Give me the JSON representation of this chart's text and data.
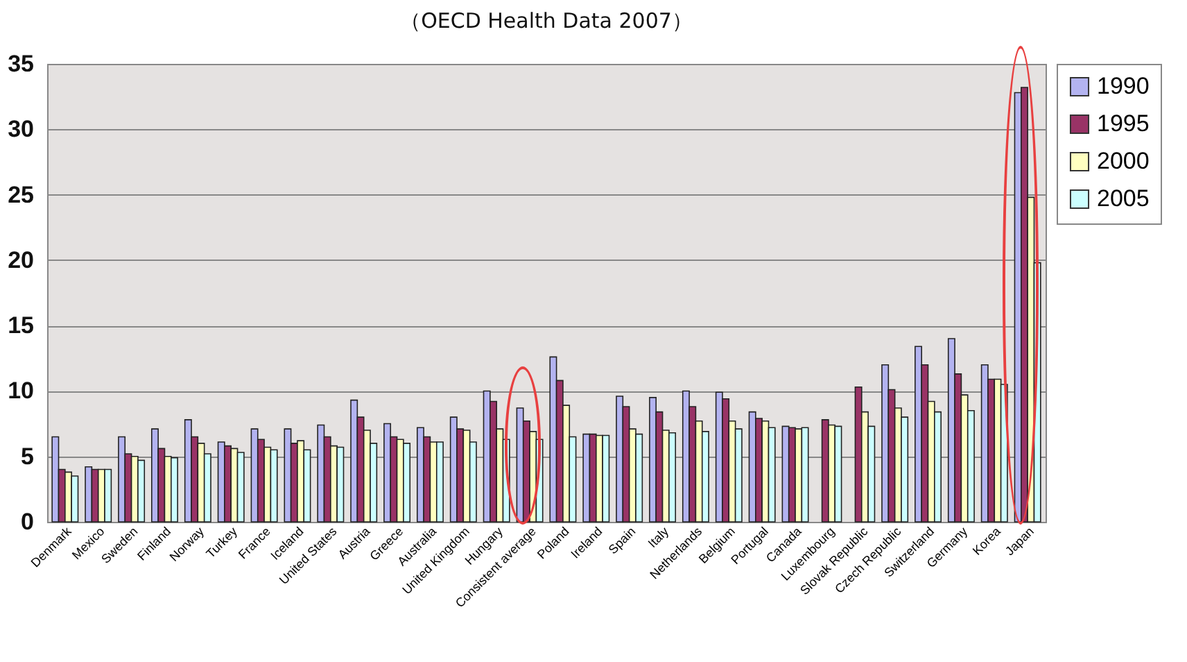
{
  "chart_data": {
    "type": "bar",
    "title": "（OECD Health Data 2007）",
    "categories": [
      "Denmark",
      "Mexico",
      "Sweden",
      "Finland",
      "Norway",
      "Turkey",
      "France",
      "Iceland",
      "United States",
      "Austria",
      "Greece",
      "Australia",
      "United Kingdom",
      "Hungary",
      "Consistent average",
      "Poland",
      "Ireland",
      "Spain",
      "Italy",
      "Netherlands",
      "Belgium",
      "Portugal",
      "Canada",
      "Luxembourg",
      "Slovak Republic",
      "Czech Republic",
      "Switzerland",
      "Germany",
      "Korea",
      "Japan"
    ],
    "series": [
      {
        "name": "1990",
        "color": "#b3b3f0",
        "values": [
          6.5,
          4.2,
          6.5,
          7.1,
          7.8,
          6.1,
          7.1,
          7.1,
          7.4,
          9.3,
          7.5,
          7.2,
          8.0,
          10.0,
          8.7,
          12.6,
          6.7,
          9.6,
          9.5,
          10.0,
          9.9,
          8.4,
          7.3,
          null,
          null,
          12.0,
          13.4,
          14.0,
          12.0,
          32.8
        ]
      },
      {
        "name": "1995",
        "color": "#993366",
        "values": [
          4.0,
          4.0,
          5.2,
          5.6,
          6.5,
          5.8,
          6.3,
          6.0,
          6.5,
          8.0,
          6.5,
          6.5,
          7.1,
          9.2,
          7.7,
          10.8,
          6.7,
          8.8,
          8.4,
          8.8,
          9.4,
          7.9,
          7.2,
          7.8,
          10.3,
          10.1,
          12.0,
          11.3,
          10.9,
          33.2
        ]
      },
      {
        "name": "2000",
        "color": "#ffffc0",
        "values": [
          3.8,
          4.0,
          5.0,
          5.0,
          6.0,
          5.6,
          5.7,
          6.2,
          5.8,
          7.0,
          6.3,
          6.1,
          7.0,
          7.1,
          6.9,
          8.9,
          6.6,
          7.1,
          7.0,
          7.7,
          7.7,
          7.7,
          7.1,
          7.4,
          8.4,
          8.7,
          9.2,
          9.7,
          10.9,
          24.8
        ]
      },
      {
        "name": "2005",
        "color": "#ccffff",
        "values": [
          3.5,
          4.0,
          4.7,
          4.9,
          5.2,
          5.3,
          5.5,
          5.5,
          5.7,
          6.0,
          6.0,
          6.1,
          6.1,
          6.3,
          6.3,
          6.5,
          6.6,
          6.7,
          6.8,
          6.9,
          7.1,
          7.2,
          7.2,
          7.3,
          7.3,
          8.0,
          8.4,
          8.5,
          10.5,
          19.8
        ]
      }
    ],
    "ylim": [
      0,
      35
    ],
    "yticks": [
      0,
      5,
      10,
      15,
      20,
      25,
      30,
      35
    ],
    "grid": "y",
    "legend": "right"
  }
}
